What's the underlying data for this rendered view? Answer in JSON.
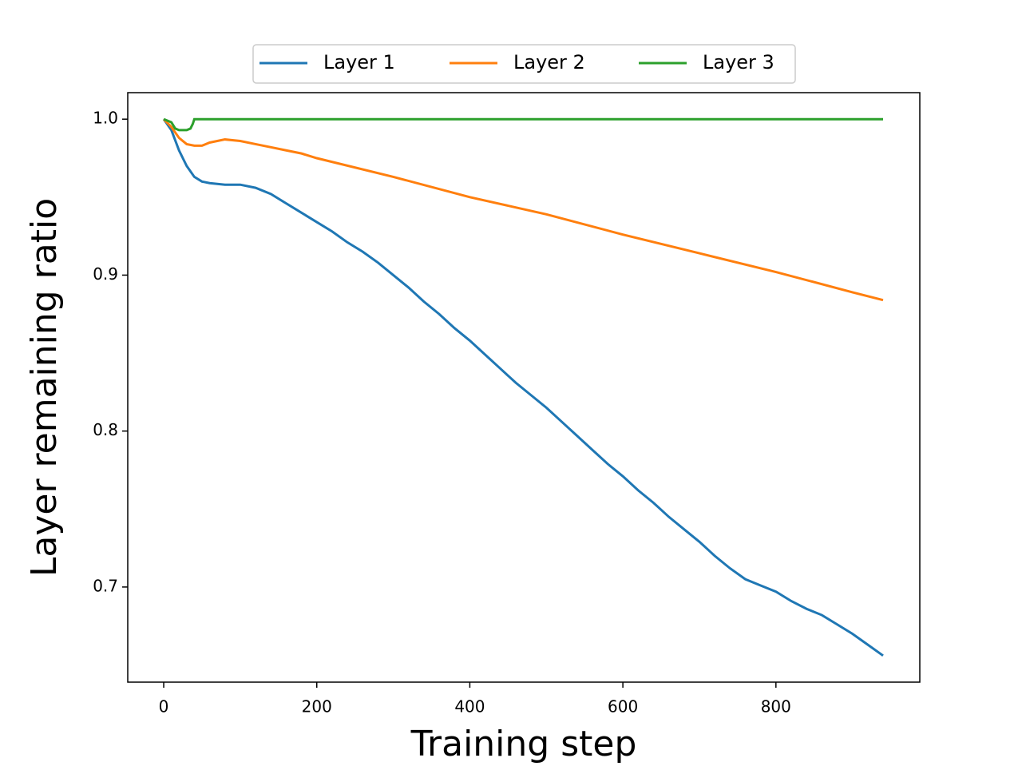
{
  "chart_data": {
    "type": "line",
    "xlabel": "Training step",
    "ylabel": "Layer remaining ratio",
    "xlim": [
      -47,
      988
    ],
    "ylim": [
      0.639,
      1.017
    ],
    "xticks": [
      0,
      200,
      400,
      600,
      800
    ],
    "yticks": [
      0.7,
      0.8,
      0.9,
      {
        "value": 1,
        "label": "1.0"
      }
    ],
    "legend": "top",
    "series": [
      {
        "name": "Layer 1",
        "color": "#1f77b4",
        "x": [
          0,
          10,
          20,
          30,
          40,
          50,
          60,
          80,
          100,
          120,
          140,
          160,
          180,
          200,
          220,
          240,
          260,
          280,
          300,
          320,
          340,
          360,
          380,
          400,
          420,
          440,
          460,
          480,
          500,
          520,
          540,
          560,
          580,
          600,
          620,
          640,
          660,
          680,
          700,
          720,
          740,
          760,
          780,
          800,
          820,
          840,
          860,
          880,
          900,
          920,
          940
        ],
        "values": [
          1.0,
          0.993,
          0.98,
          0.97,
          0.963,
          0.96,
          0.959,
          0.958,
          0.958,
          0.956,
          0.952,
          0.946,
          0.94,
          0.934,
          0.928,
          0.921,
          0.915,
          0.908,
          0.9,
          0.892,
          0.883,
          0.875,
          0.866,
          0.858,
          0.849,
          0.84,
          0.831,
          0.823,
          0.815,
          0.806,
          0.797,
          0.788,
          0.779,
          0.771,
          0.762,
          0.754,
          0.745,
          0.737,
          0.729,
          0.72,
          0.712,
          0.705,
          0.701,
          0.697,
          0.691,
          0.686,
          0.682,
          0.676,
          0.67,
          0.663,
          0.656
        ]
      },
      {
        "name": "Layer 2",
        "color": "#ff7f0e",
        "x": [
          0,
          10,
          20,
          30,
          40,
          50,
          60,
          80,
          100,
          120,
          140,
          160,
          180,
          200,
          300,
          400,
          500,
          600,
          700,
          800,
          900,
          940
        ],
        "values": [
          1.0,
          0.995,
          0.988,
          0.984,
          0.983,
          0.983,
          0.985,
          0.987,
          0.986,
          0.984,
          0.982,
          0.98,
          0.978,
          0.975,
          0.963,
          0.95,
          0.939,
          0.926,
          0.914,
          0.902,
          0.889,
          0.884
        ]
      },
      {
        "name": "Layer 3",
        "color": "#2ca02c",
        "x": [
          0,
          5,
          10,
          15,
          20,
          30,
          35,
          38,
          40,
          940
        ],
        "values": [
          1.0,
          0.999,
          0.998,
          0.994,
          0.993,
          0.993,
          0.994,
          0.997,
          1.0,
          1.0
        ]
      }
    ]
  }
}
